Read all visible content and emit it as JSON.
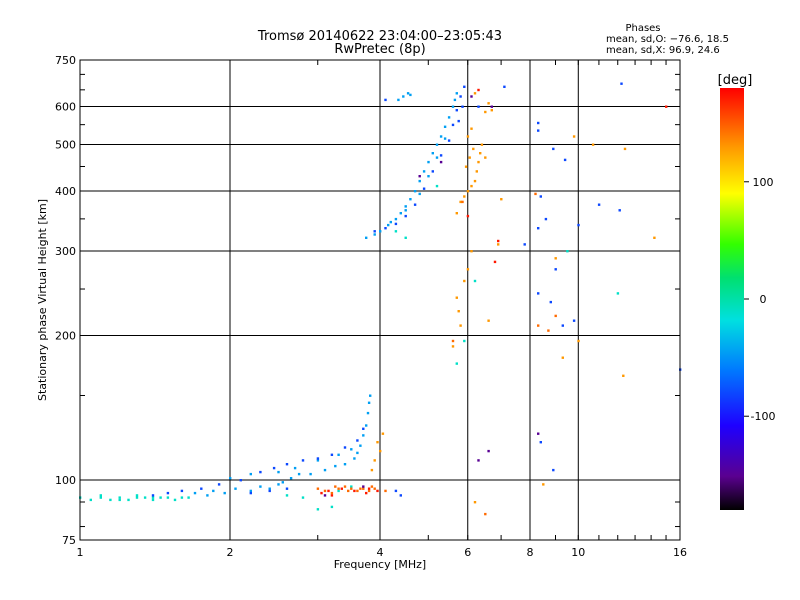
{
  "chart_data": {
    "type": "scatter",
    "title": "Tromsø 20140622 23:04:00–23:05:43",
    "subtitle": "RwPretec (8p)",
    "xlabel": "Frequency [MHz]",
    "ylabel": "Stationary phase Virtual Height [km]",
    "x_scale": "log",
    "y_scale": "log",
    "xlim": [
      1,
      16
    ],
    "ylim": [
      75,
      750
    ],
    "x_ticks": [
      1,
      2,
      4,
      6,
      8,
      10,
      16
    ],
    "y_ticks": [
      75,
      100,
      200,
      300,
      400,
      500,
      600,
      750
    ],
    "grid": true,
    "phase_stats": {
      "heading": "Phases",
      "line_o": "mean, sd,O: −76.6, 18.5",
      "line_x": "mean, sd,X:  96.9, 24.6"
    },
    "colorbar": {
      "label": "[deg]",
      "ticks": [
        100,
        0,
        -100
      ],
      "range": [
        -180,
        180
      ],
      "colormap": "rainbow"
    },
    "series": [
      {
        "phase_deg": -10,
        "points": [
          [
            1.0,
            92
          ],
          [
            1.05,
            91
          ],
          [
            1.1,
            92
          ],
          [
            1.15,
            91
          ],
          [
            1.2,
            92
          ],
          [
            1.25,
            91
          ],
          [
            1.3,
            92
          ],
          [
            1.35,
            92
          ],
          [
            1.4,
            91
          ],
          [
            1.45,
            92
          ],
          [
            1.5,
            92
          ],
          [
            1.55,
            91
          ],
          [
            1.6,
            92
          ],
          [
            1.65,
            92
          ],
          [
            1.1,
            93
          ],
          [
            1.2,
            91
          ],
          [
            1.3,
            93
          ],
          [
            1.4,
            92
          ],
          [
            2.6,
            93
          ],
          [
            2.8,
            92
          ],
          [
            3.3,
            95
          ],
          [
            3.5,
            97
          ],
          [
            5.7,
            175
          ],
          [
            5.9,
            195
          ],
          [
            4.5,
            320
          ],
          [
            4.3,
            330
          ],
          [
            5.2,
            410
          ],
          [
            6.2,
            260
          ],
          [
            12.0,
            245
          ],
          [
            9.5,
            300
          ],
          [
            3.0,
            87
          ],
          [
            3.2,
            88
          ]
        ]
      },
      {
        "phase_deg": -45,
        "points": [
          [
            1.7,
            94
          ],
          [
            1.8,
            93
          ],
          [
            1.85,
            95
          ],
          [
            1.95,
            94
          ],
          [
            2.05,
            96
          ],
          [
            2.2,
            95
          ],
          [
            2.3,
            97
          ],
          [
            2.4,
            96
          ],
          [
            2.5,
            98
          ],
          [
            2.55,
            99
          ],
          [
            2.65,
            101
          ],
          [
            2.75,
            103
          ],
          [
            2.9,
            103
          ],
          [
            3.1,
            105
          ],
          [
            3.25,
            107
          ],
          [
            3.4,
            108
          ],
          [
            3.55,
            111
          ],
          [
            3.6,
            114
          ],
          [
            3.65,
            118
          ],
          [
            3.7,
            124
          ],
          [
            3.75,
            130
          ],
          [
            3.78,
            138
          ],
          [
            3.8,
            145
          ],
          [
            3.82,
            150
          ],
          [
            2.0,
            101
          ],
          [
            2.2,
            103
          ],
          [
            2.5,
            104
          ],
          [
            2.7,
            106
          ],
          [
            3.0,
            110
          ],
          [
            3.3,
            113
          ],
          [
            3.5,
            116
          ],
          [
            3.75,
            320
          ],
          [
            3.9,
            325
          ],
          [
            4.0,
            330
          ],
          [
            4.15,
            340
          ],
          [
            4.3,
            350
          ],
          [
            4.4,
            360
          ],
          [
            4.5,
            372
          ],
          [
            4.6,
            385
          ],
          [
            4.7,
            400
          ],
          [
            4.8,
            420
          ],
          [
            4.9,
            440
          ],
          [
            5.0,
            460
          ],
          [
            5.1,
            480
          ],
          [
            5.2,
            500
          ],
          [
            5.3,
            520
          ],
          [
            5.4,
            545
          ],
          [
            5.5,
            570
          ],
          [
            5.6,
            600
          ],
          [
            5.65,
            620
          ],
          [
            5.7,
            640
          ],
          [
            4.2,
            345
          ],
          [
            4.5,
            365
          ],
          [
            4.8,
            395
          ],
          [
            5.0,
            430
          ],
          [
            5.2,
            470
          ],
          [
            5.4,
            515
          ],
          [
            4.35,
            620
          ],
          [
            4.45,
            630
          ],
          [
            4.55,
            640
          ],
          [
            4.6,
            635
          ]
        ]
      },
      {
        "phase_deg": -80,
        "points": [
          [
            1.4,
            93
          ],
          [
            1.5,
            94
          ],
          [
            1.6,
            95
          ],
          [
            1.75,
            96
          ],
          [
            1.9,
            98
          ],
          [
            2.1,
            100
          ],
          [
            2.3,
            104
          ],
          [
            2.45,
            106
          ],
          [
            2.6,
            108
          ],
          [
            2.8,
            110
          ],
          [
            3.0,
            111
          ],
          [
            3.2,
            113
          ],
          [
            3.4,
            117
          ],
          [
            3.6,
            121
          ],
          [
            3.7,
            128
          ],
          [
            2.2,
            94
          ],
          [
            2.4,
            95
          ],
          [
            2.6,
            96
          ],
          [
            3.9,
            330
          ],
          [
            4.1,
            335
          ],
          [
            4.3,
            342
          ],
          [
            4.5,
            355
          ],
          [
            4.7,
            375
          ],
          [
            4.9,
            405
          ],
          [
            5.1,
            440
          ],
          [
            5.3,
            475
          ],
          [
            5.5,
            510
          ],
          [
            5.6,
            550
          ],
          [
            5.7,
            590
          ],
          [
            5.8,
            630
          ],
          [
            5.9,
            660
          ],
          [
            5.75,
            560
          ],
          [
            5.85,
            600
          ],
          [
            4.1,
            620
          ],
          [
            6.3,
            600
          ],
          [
            7.1,
            660
          ],
          [
            8.3,
            555
          ],
          [
            8.3,
            535
          ],
          [
            8.9,
            490
          ],
          [
            9.4,
            465
          ],
          [
            8.4,
            390
          ],
          [
            8.6,
            350
          ],
          [
            8.3,
            335
          ],
          [
            8.3,
            245
          ],
          [
            8.8,
            235
          ],
          [
            9.0,
            275
          ],
          [
            9.3,
            210
          ],
          [
            9.8,
            215
          ],
          [
            10.0,
            340
          ],
          [
            11.0,
            375
          ],
          [
            12.1,
            365
          ],
          [
            8.4,
            120
          ],
          [
            8.9,
            105
          ],
          [
            4.3,
            95
          ],
          [
            4.4,
            93
          ],
          [
            12.2,
            670
          ],
          [
            7.8,
            310
          ],
          [
            16.0,
            170
          ]
        ]
      },
      {
        "phase_deg": 130,
        "points": [
          [
            5.7,
            360
          ],
          [
            5.8,
            380
          ],
          [
            5.9,
            390
          ],
          [
            6.0,
            400
          ],
          [
            6.1,
            410
          ],
          [
            6.2,
            420
          ],
          [
            6.25,
            440
          ],
          [
            6.3,
            460
          ],
          [
            6.35,
            480
          ],
          [
            6.4,
            500
          ],
          [
            6.5,
            470
          ],
          [
            5.95,
            450
          ],
          [
            6.05,
            470
          ],
          [
            6.15,
            490
          ],
          [
            6.0,
            520
          ],
          [
            6.1,
            540
          ],
          [
            6.5,
            585
          ],
          [
            6.6,
            610
          ],
          [
            6.7,
            590
          ],
          [
            6.2,
            640
          ],
          [
            6.1,
            300
          ],
          [
            6.0,
            275
          ],
          [
            5.9,
            260
          ],
          [
            5.7,
            240
          ],
          [
            5.75,
            225
          ],
          [
            5.8,
            210
          ],
          [
            5.6,
            190
          ],
          [
            6.9,
            310
          ],
          [
            7.0,
            385
          ],
          [
            4.05,
            125
          ],
          [
            4.0,
            115
          ],
          [
            3.9,
            110
          ],
          [
            3.85,
            105
          ],
          [
            3.95,
            120
          ],
          [
            9.0,
            290
          ],
          [
            9.8,
            520
          ],
          [
            10.7,
            500
          ],
          [
            12.4,
            490
          ],
          [
            14.2,
            320
          ],
          [
            9.3,
            180
          ],
          [
            10.0,
            195
          ],
          [
            12.3,
            165
          ],
          [
            6.6,
            215
          ],
          [
            8.5,
            98
          ],
          [
            6.2,
            90
          ]
        ]
      },
      {
        "phase_deg": 145,
        "points": [
          [
            3.0,
            96
          ],
          [
            3.1,
            95
          ],
          [
            3.2,
            94
          ],
          [
            3.3,
            96
          ],
          [
            3.4,
            97
          ],
          [
            3.5,
            96
          ],
          [
            3.6,
            95
          ],
          [
            3.7,
            96
          ],
          [
            3.8,
            95
          ],
          [
            3.9,
            96
          ],
          [
            3.25,
            97
          ],
          [
            3.45,
            95
          ],
          [
            3.65,
            96
          ],
          [
            3.85,
            97
          ],
          [
            4.1,
            95
          ],
          [
            6.5,
            85
          ],
          [
            8.3,
            210
          ],
          [
            8.7,
            205
          ],
          [
            9.0,
            220
          ],
          [
            5.85,
            380
          ],
          [
            5.6,
            195
          ],
          [
            8.2,
            395
          ]
        ]
      },
      {
        "phase_deg": 172,
        "points": [
          [
            3.05,
            94
          ],
          [
            3.15,
            95
          ],
          [
            3.2,
            93
          ],
          [
            3.35,
            96
          ],
          [
            3.55,
            95
          ],
          [
            3.75,
            94
          ],
          [
            3.8,
            96
          ],
          [
            3.95,
            95
          ],
          [
            6.0,
            355
          ],
          [
            6.3,
            650
          ],
          [
            15.0,
            600
          ],
          [
            6.9,
            315
          ],
          [
            6.8,
            285
          ]
        ]
      },
      {
        "phase_deg": -150,
        "points": [
          [
            3.1,
            93
          ],
          [
            3.7,
            97
          ],
          [
            6.3,
            110
          ],
          [
            6.6,
            115
          ],
          [
            8.3,
            125
          ],
          [
            6.7,
            600
          ],
          [
            6.1,
            630
          ],
          [
            5.3,
            460
          ],
          [
            4.8,
            430
          ]
        ]
      }
    ]
  }
}
